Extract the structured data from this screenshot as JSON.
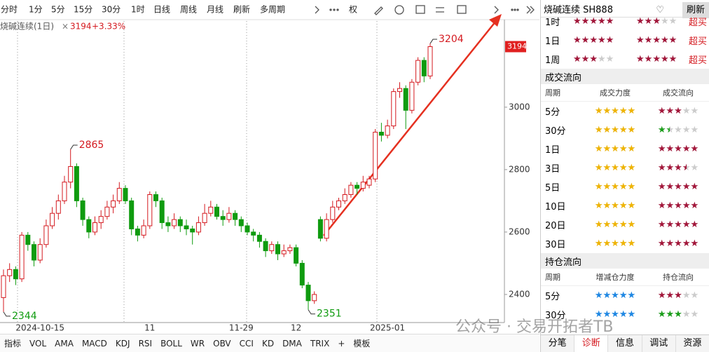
{
  "toolbar": [
    "分时",
    "1分",
    "5分",
    "15分",
    "30分",
    "1时",
    "日线",
    "周线",
    "月线",
    "刷新",
    "多周期",
    "权"
  ],
  "chart_data": {
    "type": "candlestick",
    "title": "烧碱连续(1日)",
    "price": "3194",
    "change": "+3.33%",
    "categories": [
      null,
      null,
      null,
      null,
      null,
      null,
      "2024-10-15",
      null,
      null,
      null,
      null,
      null,
      null,
      null,
      null,
      null,
      null,
      null,
      null,
      null,
      null,
      null,
      null,
      null,
      "11",
      null,
      null,
      null,
      null,
      null,
      null,
      null,
      null,
      null,
      null,
      null,
      null,
      null,
      null,
      "11-29",
      null,
      null,
      null,
      null,
      null,
      null,
      null,
      null,
      "12",
      null,
      null,
      null,
      null,
      null,
      null,
      null,
      null,
      null,
      null,
      null,
      null,
      null,
      null,
      "2025-01",
      null,
      null,
      null,
      null,
      null,
      null,
      null
    ],
    "ohlc": [
      [
        2390,
        2480,
        2344,
        2460
      ],
      [
        2460,
        2500,
        2440,
        2480
      ],
      [
        2480,
        2490,
        2430,
        2450
      ],
      [
        2450,
        2600,
        2440,
        2590
      ],
      [
        2590,
        2600,
        2540,
        2560
      ],
      [
        2560,
        2570,
        2490,
        2510
      ],
      [
        2510,
        2580,
        2500,
        2560
      ],
      [
        2560,
        2640,
        2550,
        2620
      ],
      [
        2620,
        2680,
        2610,
        2660
      ],
      [
        2660,
        2720,
        2640,
        2700
      ],
      [
        2700,
        2780,
        2690,
        2760
      ],
      [
        2760,
        2865,
        2740,
        2810
      ],
      [
        2810,
        2820,
        2680,
        2700
      ],
      [
        2700,
        2710,
        2620,
        2640
      ],
      [
        2640,
        2650,
        2580,
        2600
      ],
      [
        2600,
        2650,
        2590,
        2630
      ],
      [
        2630,
        2670,
        2610,
        2650
      ],
      [
        2650,
        2700,
        2640,
        2680
      ],
      [
        2680,
        2720,
        2660,
        2700
      ],
      [
        2700,
        2760,
        2690,
        2740
      ],
      [
        2740,
        2750,
        2690,
        2700
      ],
      [
        2700,
        2710,
        2590,
        2610
      ],
      [
        2610,
        2620,
        2570,
        2590
      ],
      [
        2590,
        2640,
        2580,
        2620
      ],
      [
        2620,
        2730,
        2610,
        2720
      ],
      [
        2720,
        2730,
        2680,
        2700
      ],
      [
        2700,
        2710,
        2610,
        2630
      ],
      [
        2630,
        2650,
        2600,
        2620
      ],
      [
        2620,
        2660,
        2610,
        2640
      ],
      [
        2640,
        2650,
        2600,
        2620
      ],
      [
        2620,
        2640,
        2590,
        2610
      ],
      [
        2610,
        2620,
        2560,
        2600
      ],
      [
        2600,
        2650,
        2590,
        2630
      ],
      [
        2630,
        2690,
        2620,
        2660
      ],
      [
        2660,
        2700,
        2650,
        2680
      ],
      [
        2680,
        2690,
        2640,
        2650
      ],
      [
        2650,
        2670,
        2620,
        2640
      ],
      [
        2640,
        2680,
        2630,
        2660
      ],
      [
        2660,
        2670,
        2620,
        2640
      ],
      [
        2640,
        2650,
        2600,
        2620
      ],
      [
        2620,
        2630,
        2590,
        2600
      ],
      [
        2600,
        2610,
        2570,
        2590
      ],
      [
        2590,
        2600,
        2550,
        2570
      ],
      [
        2570,
        2580,
        2520,
        2540
      ],
      [
        2540,
        2570,
        2530,
        2560
      ],
      [
        2560,
        2570,
        2510,
        2530
      ],
      [
        2530,
        2560,
        2520,
        2540
      ],
      [
        2540,
        2560,
        2530,
        2550
      ],
      [
        2550,
        2560,
        2490,
        2500
      ],
      [
        2500,
        2510,
        2420,
        2430
      ],
      [
        2430,
        2440,
        2351,
        2380
      ],
      [
        2380,
        2410,
        2370,
        2400
      ],
      [
        2640,
        2650,
        2570,
        2580
      ],
      [
        2580,
        2660,
        2570,
        2640
      ],
      [
        2640,
        2700,
        2630,
        2680
      ],
      [
        2680,
        2710,
        2670,
        2700
      ],
      [
        2700,
        2740,
        2690,
        2720
      ],
      [
        2720,
        2760,
        2710,
        2750
      ],
      [
        2750,
        2760,
        2720,
        2740
      ],
      [
        2740,
        2780,
        2730,
        2760
      ],
      [
        2750,
        2780,
        2740,
        2770
      ],
      [
        2770,
        2930,
        2760,
        2920
      ],
      [
        2920,
        2950,
        2890,
        2910
      ],
      [
        2910,
        2960,
        2900,
        2940
      ],
      [
        2940,
        3060,
        2930,
        3050
      ],
      [
        3050,
        3080,
        3030,
        3060
      ],
      [
        3060,
        3070,
        2930,
        2990
      ],
      [
        2990,
        3090,
        2980,
        3080
      ],
      [
        3080,
        3160,
        3070,
        3150
      ],
      [
        3150,
        3160,
        3080,
        3100
      ],
      [
        3100,
        3204,
        3090,
        3194
      ]
    ],
    "up_color": "#d4191f",
    "down_color": "#0f9b0f",
    "ylim": [
      2310,
      3276
    ],
    "yticks": [
      2400,
      2600,
      2800,
      3000
    ],
    "annotations": [
      3204,
      2865,
      2344,
      2351
    ]
  },
  "indicator_tabs": [
    "指标",
    "VOL",
    "AMA",
    "MACD",
    "KDJ",
    "RSI",
    "BOLL",
    "WR",
    "OBV",
    "CCI",
    "KD",
    "DMA",
    "TRIX",
    "+",
    "模板"
  ],
  "panel": {
    "title": "烧碱连续 SH888",
    "refresh": "刷新",
    "color": "#a3163a",
    "signals": [
      {
        "period": "1时",
        "short": 5,
        "long": 3,
        "state": "超买"
      },
      {
        "period": "1日",
        "short": 5,
        "long": 5,
        "state": "超买"
      },
      {
        "period": "1周",
        "short": 3,
        "long": 5,
        "state": "超买"
      }
    ],
    "volume_flow": {
      "title": "成交流向",
      "headers": [
        "周期",
        "成交力度",
        "成交流向"
      ],
      "strength_color": "#f0b400",
      "rows": [
        {
          "period": "5分",
          "strength": 5,
          "flow": 3,
          "flow_color": "#a3163a"
        },
        {
          "period": "30分",
          "strength": 5,
          "flow": 1.5,
          "flow_color": "#1a9e1a"
        },
        {
          "period": "1日",
          "strength": 5,
          "flow": 5,
          "flow_color": "#a3163a"
        },
        {
          "period": "3日",
          "strength": 5,
          "flow": 3.5,
          "flow_color": "#a3163a"
        },
        {
          "period": "5日",
          "strength": 5,
          "flow": 5,
          "flow_color": "#a3163a"
        },
        {
          "period": "10日",
          "strength": 5,
          "flow": 5,
          "flow_color": "#a3163a"
        },
        {
          "period": "20日",
          "strength": 5,
          "flow": 5,
          "flow_color": "#a3163a"
        },
        {
          "period": "30日",
          "strength": 5,
          "flow": 5,
          "flow_color": "#a3163a"
        }
      ]
    },
    "position_flow": {
      "title": "持仓流向",
      "headers": [
        "周期",
        "增减仓力度",
        "持仓流向"
      ],
      "strength_color": "#1e88e5",
      "rows": [
        {
          "period": "5分",
          "strength": 5,
          "flow": 3,
          "flow_color": "#a3163a"
        },
        {
          "period": "30分",
          "strength": 5,
          "flow": 3,
          "flow_color": "#1a9e1a"
        }
      ]
    },
    "tabs": [
      "分笔",
      "诊断",
      "信息",
      "调试",
      "资源"
    ]
  },
  "watermark": "公众号 · 交易开拓者TB"
}
